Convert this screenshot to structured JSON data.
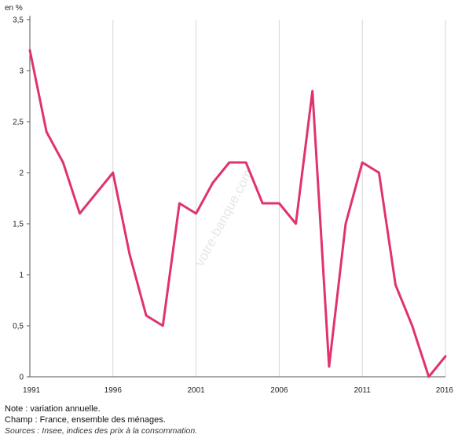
{
  "chart_data": {
    "type": "line",
    "title": "",
    "ylabel": "en %",
    "xlabel": "",
    "ylim": [
      0,
      3.5
    ],
    "xlim": [
      1991,
      2016
    ],
    "grid": {
      "vertical": true,
      "horizontal": false
    },
    "line_color": "#e0336e",
    "x_ticks": [
      "1991",
      "1996",
      "2001",
      "2006",
      "2011",
      "2016"
    ],
    "y_ticks": [
      "0",
      "0,5",
      "1",
      "1,5",
      "2",
      "2,5",
      "3",
      "3,5"
    ],
    "series": [
      {
        "x": [
          1991,
          1992,
          1993,
          1994,
          1995,
          1996,
          1997,
          1998,
          1999,
          2000,
          2001,
          2002,
          2003,
          2004,
          2005,
          2006,
          2007,
          2008,
          2009,
          2010,
          2011,
          2012,
          2013,
          2014,
          2015,
          2016
        ],
        "values": [
          3.2,
          2.4,
          2.1,
          1.6,
          1.8,
          2.0,
          1.2,
          0.6,
          0.5,
          1.7,
          1.6,
          1.9,
          2.1,
          2.1,
          1.7,
          1.7,
          1.5,
          2.8,
          0.1,
          1.5,
          2.1,
          2.0,
          0.9,
          0.5,
          0.0,
          0.2
        ]
      }
    ]
  },
  "watermark": "votre-banque.com",
  "notes": {
    "note": "Note : variation annuelle.",
    "champ": "Champ : France, ensemble des ménages.",
    "sources": "Sources : Insee, indices des prix à la consommation."
  }
}
